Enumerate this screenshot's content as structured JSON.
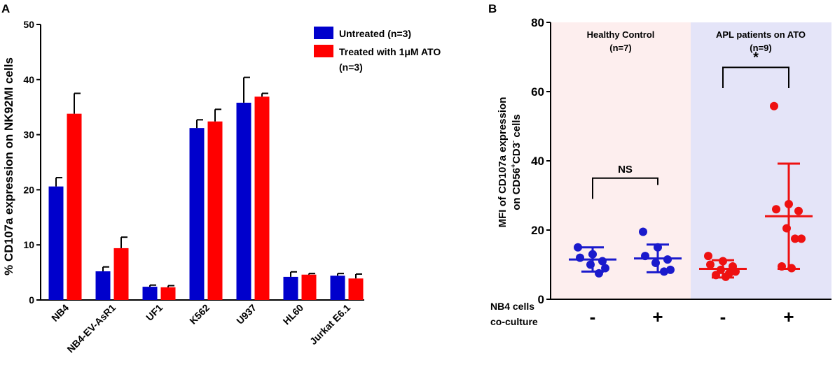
{
  "chart_data": [
    {
      "panel": "A",
      "type": "bar",
      "ylabel": "% CD107a expression on NK92MI cells",
      "xlabel": "",
      "ylim": [
        0,
        50
      ],
      "yticks": [
        0,
        10,
        20,
        30,
        40,
        50
      ],
      "categories": [
        "NB4",
        "NB4-EV-AsR1",
        "UF1",
        "K562",
        "U937",
        "HL60",
        "Jurkat E6.1"
      ],
      "legend_position": "top-right",
      "series": [
        {
          "name": "Untreated (n=3)",
          "color": "#0000cc",
          "values": [
            20.6,
            5.2,
            2.4,
            31.2,
            35.8,
            4.2,
            4.4
          ],
          "errors": [
            1.6,
            0.8,
            0.3,
            1.5,
            4.6,
            0.9,
            0.4
          ]
        },
        {
          "name": "Treated with 1μM ATO",
          "name_line2": "(n=3)",
          "color": "#ff0000",
          "values": [
            33.8,
            9.4,
            2.3,
            32.4,
            36.9,
            4.6,
            3.9
          ],
          "errors": [
            3.7,
            2.0,
            0.3,
            2.2,
            0.6,
            0.2,
            0.8
          ]
        }
      ]
    },
    {
      "panel": "B",
      "type": "scatter",
      "ylabel_line1": "MFI of CD107a expression",
      "ylabel_line2": "on CD56",
      "ylabel_sup1": "+",
      "ylabel_mid": "CD3",
      "ylabel_sup2": "-",
      "ylabel_end": " cells",
      "ylim": [
        0,
        80
      ],
      "yticks": [
        0,
        20,
        40,
        60,
        80
      ],
      "row_label_line1": "NB4 cells",
      "row_label_line2": "co-culture",
      "groups": [
        {
          "title_line1": "Healthy Control",
          "title_line2": "(n=7)",
          "bg": "#fdeeee"
        },
        {
          "title_line1": "APL patients on ATO",
          "title_line2": "(n=9)",
          "bg": "#e4e4f8"
        }
      ],
      "conditions": [
        {
          "xlabel": "-",
          "color": "#1a1acc",
          "mean": 11.5,
          "sd_low": 8.0,
          "sd_high": 15.0,
          "points": [
            15.0,
            13.0,
            12.0,
            11.0,
            10.0,
            9.0,
            7.5
          ]
        },
        {
          "xlabel": "+",
          "color": "#1a1acc",
          "mean": 11.8,
          "sd_low": 7.8,
          "sd_high": 15.8,
          "points": [
            19.5,
            15.0,
            12.5,
            11.5,
            10.5,
            8.5,
            8.0
          ]
        },
        {
          "xlabel": "-",
          "color": "#ee1111",
          "mean": 8.8,
          "sd_low": 6.3,
          "sd_high": 11.3,
          "points": [
            12.5,
            11.0,
            10.0,
            9.5,
            8.5,
            8.0,
            7.5,
            7.0,
            6.5
          ]
        },
        {
          "xlabel": "+",
          "color": "#ee1111",
          "mean": 24.0,
          "sd_low": 8.8,
          "sd_high": 39.2,
          "points": [
            55.8,
            27.5,
            26.0,
            25.5,
            20.5,
            17.5,
            17.5,
            9.5,
            9.0
          ]
        }
      ],
      "annotations": [
        {
          "text": "NS",
          "between": [
            0,
            1
          ],
          "y_level": 35,
          "drop_to": [
            29.0,
            33.0
          ]
        },
        {
          "text": "*",
          "between": [
            2,
            3
          ],
          "y_level": 67,
          "drop_to": [
            61.0,
            61.0
          ]
        }
      ]
    }
  ],
  "panel_labels": {
    "a": "A",
    "b": "B"
  }
}
